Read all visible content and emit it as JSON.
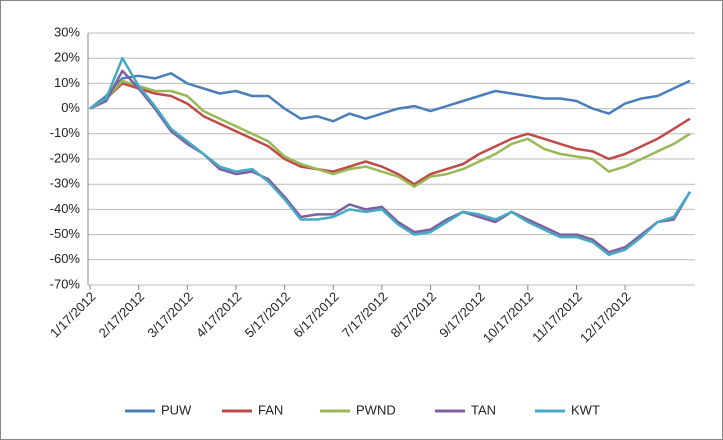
{
  "chart_data": {
    "type": "line",
    "categories": [
      "1/17/2012",
      null,
      null,
      "2/17/2012",
      null,
      null,
      "3/17/2012",
      null,
      null,
      "4/17/2012",
      null,
      null,
      "5/17/2012",
      null,
      null,
      "6/17/2012",
      null,
      null,
      "7/17/2012",
      null,
      null,
      "8/17/2012",
      null,
      null,
      "9/17/2012",
      null,
      null,
      "10/17/2012",
      null,
      null,
      "11/17/2012",
      null,
      null,
      "12/17/2012",
      null,
      null,
      null,
      null
    ],
    "series": [
      {
        "name": "PUW",
        "color": "#4a7ebb",
        "values": [
          0,
          5,
          12,
          13,
          12,
          14,
          10,
          8,
          6,
          7,
          5,
          5,
          0,
          -4,
          -3,
          -5,
          -2,
          -4,
          -2,
          0,
          1,
          -1,
          1,
          3,
          5,
          7,
          6,
          5,
          4,
          4,
          3,
          0,
          -2,
          2,
          4,
          5,
          8,
          11
        ]
      },
      {
        "name": "FAN",
        "color": "#be4b48",
        "values": [
          0,
          4,
          10,
          8,
          6,
          5,
          2,
          -3,
          -6,
          -9,
          -12,
          -15,
          -20,
          -23,
          -24,
          -25,
          -23,
          -21,
          -23,
          -26,
          -30,
          -26,
          -24,
          -22,
          -18,
          -15,
          -12,
          -10,
          -12,
          -14,
          -16,
          -17,
          -20,
          -18,
          -15,
          -12,
          -8,
          -4
        ]
      },
      {
        "name": "PWND",
        "color": "#98b954",
        "values": [
          0,
          4,
          11,
          9,
          7,
          7,
          5,
          -1,
          -4,
          -7,
          -10,
          -13,
          -19,
          -22,
          -24,
          -26,
          -24,
          -23,
          -25,
          -27,
          -31,
          -27,
          -26,
          -24,
          -21,
          -18,
          -14,
          -12,
          -16,
          -18,
          -19,
          -20,
          -25,
          -23,
          -20,
          -17,
          -14,
          -10
        ]
      },
      {
        "name": "TAN",
        "color": "#7d60a0",
        "values": [
          0,
          3,
          15,
          8,
          0,
          -9,
          -14,
          -18,
          -24,
          -26,
          -25,
          -28,
          -35,
          -43,
          -42,
          -42,
          -38,
          -40,
          -39,
          -45,
          -49,
          -48,
          -44,
          -41,
          -43,
          -45,
          -41,
          -44,
          -47,
          -50,
          -50,
          -52,
          -57,
          -55,
          -50,
          -45,
          -44,
          -33
        ]
      },
      {
        "name": "KWT",
        "color": "#46aac5",
        "values": [
          0,
          4,
          20,
          9,
          1,
          -8,
          -13,
          -18,
          -23,
          -25,
          -24,
          -29,
          -36,
          -44,
          -44,
          -43,
          -40,
          -41,
          -40,
          -46,
          -50,
          -49,
          -45,
          -41,
          -42,
          -44,
          -41,
          -45,
          -48,
          -51,
          -51,
          -53,
          -58,
          -56,
          -51,
          -45,
          -43,
          -33
        ]
      }
    ],
    "ylim": [
      -70,
      30
    ],
    "yticks": [
      {
        "value": -70,
        "label": "-70%"
      },
      {
        "value": -60,
        "label": "-60%"
      },
      {
        "value": -50,
        "label": "-50%"
      },
      {
        "value": -40,
        "label": "-40%"
      },
      {
        "value": -30,
        "label": "-30%"
      },
      {
        "value": -20,
        "label": "-20%"
      },
      {
        "value": -10,
        "label": "-10%"
      },
      {
        "value": 0,
        "label": "0%"
      },
      {
        "value": 10,
        "label": "10%"
      },
      {
        "value": 20,
        "label": "20%"
      },
      {
        "value": 30,
        "label": "30%"
      }
    ],
    "grid": true
  }
}
